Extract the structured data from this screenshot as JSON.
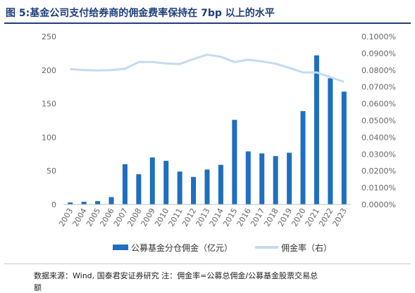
{
  "header": {
    "title": "图 5:基金公司支付给券商的佣金费率保持在 7bp 以上的水平"
  },
  "footer": {
    "source_line1": "数据来源：Wind, 国泰君安证券研究 注：佣金率=公募总佣金/公募基金股票交易总",
    "source_line2": "额"
  },
  "colors": {
    "bar": "#1e6fbf",
    "line": "#c5daf0",
    "title": "#1f3f7a"
  },
  "chart_data": {
    "type": "bar",
    "categories": [
      "2003",
      "2004",
      "2005",
      "2006",
      "2007",
      "2008",
      "2009",
      "2010",
      "2011",
      "2012",
      "2013",
      "2014",
      "2015",
      "2016",
      "2017",
      "2018",
      "2019",
      "2020",
      "2021",
      "2022",
      "2023"
    ],
    "series": [
      {
        "name": "公募基金分仓佣金（亿元）",
        "type": "bar",
        "axis": "left",
        "values": [
          3,
          4,
          5,
          11,
          60,
          45,
          70,
          65,
          49,
          41,
          52,
          59,
          126,
          79,
          76,
          72,
          77,
          139,
          222,
          188,
          168
        ]
      },
      {
        "name": "佣金率（右）",
        "type": "line",
        "axis": "right",
        "values": [
          0.000806,
          0.0008,
          0.000798,
          0.0008,
          0.000808,
          0.000848,
          0.000848,
          0.00084,
          0.000836,
          0.000866,
          0.000892,
          0.00088,
          0.000848,
          0.000862,
          0.000852,
          0.000838,
          0.000814,
          0.000786,
          0.000786,
          0.000758,
          0.00073
        ]
      }
    ],
    "yleft": {
      "ylim": [
        0,
        250
      ],
      "ticks": [
        "0",
        "50",
        "100",
        "150",
        "200",
        "250"
      ]
    },
    "yright": {
      "ylim": [
        0,
        0.001
      ],
      "ticks": [
        "0.0000%",
        "0.0100%",
        "0.0200%",
        "0.0300%",
        "0.0400%",
        "0.0500%",
        "0.0600%",
        "0.0700%",
        "0.0800%",
        "0.0900%",
        "0.1000%"
      ]
    },
    "legend": {
      "position": "bottom",
      "bar_label": "公募基金分仓佣金（亿元）",
      "line_label": "佣金率（右）"
    },
    "grid": false
  }
}
